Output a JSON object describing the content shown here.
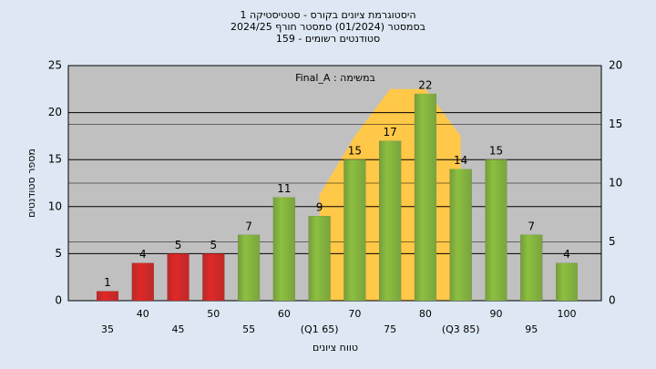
{
  "chart_data": {
    "type": "bar",
    "title": "היסטוגרמת ציונים בקורס - סטטיסטיקה 1",
    "subtitle": "בסמסטר  (01/2024)  סמסטר חורף 2024/25",
    "subtitle2": "סטודנטים רשומים - 159",
    "annotation": "במשימה : Final_A",
    "y_label": "מספר סטודנטים",
    "x_label": "טווח ציונים",
    "categories": [
      "35",
      "40",
      "45",
      "50",
      "55",
      "60",
      "(Q1 65)",
      "70",
      "75",
      "80",
      "(Q3 85)",
      "90",
      "95",
      "100"
    ],
    "values": [
      1,
      4,
      5,
      5,
      7,
      11,
      9,
      15,
      17,
      22,
      14,
      15,
      7,
      4
    ],
    "bar_colors": [
      "#e02828",
      "#e02828",
      "#e02828",
      "#e02828",
      "#8cc040",
      "#8cc040",
      "#8cc040",
      "#8cc040",
      "#8cc040",
      "#8cc040",
      "#8cc040",
      "#8cc040",
      "#8cc040",
      "#8cc040"
    ],
    "area": {
      "color": "#ffc848",
      "axis": "y2",
      "values": [
        null,
        null,
        null,
        null,
        null,
        null,
        9,
        14,
        18,
        18,
        14,
        null,
        null,
        null
      ]
    },
    "ylim": [
      0,
      25
    ],
    "yticks": [
      0,
      5,
      10,
      15,
      20,
      25
    ],
    "y2lim": [
      0,
      20
    ],
    "y2ticks": [
      0,
      5,
      10,
      15,
      20
    ],
    "grid": true
  }
}
